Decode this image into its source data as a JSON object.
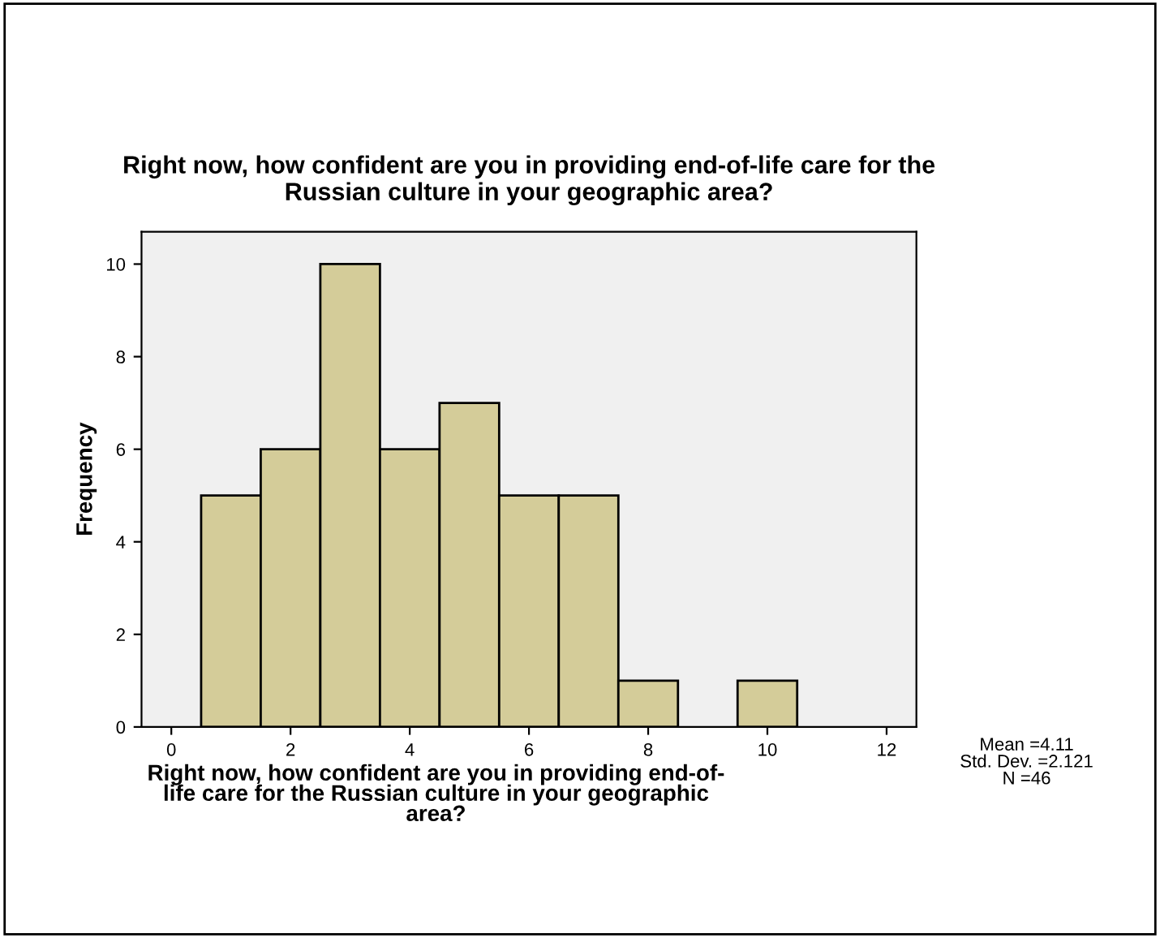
{
  "chart_data": {
    "type": "histogram",
    "title": "Right now, how confident are you in providing end-of-life care for the\nRussian culture in your geographic area?",
    "xlabel": "Right now, how confident are you in providing end-of-\nlife care for the Russian culture in your geographic\narea?",
    "ylabel": "Frequency",
    "bins": [
      0.5,
      1.5,
      2.5,
      3.5,
      4.5,
      5.5,
      6.5,
      7.5,
      8.5,
      9.5,
      10.5
    ],
    "values": [
      5,
      6,
      10,
      6,
      7,
      5,
      5,
      1,
      0,
      1
    ],
    "color": "#d4cc99",
    "xlim": [
      -0.5,
      12.5
    ],
    "xticks": [
      0,
      2,
      4,
      6,
      8,
      10,
      12
    ],
    "ylim": [
      0,
      10.7
    ],
    "yticks": [
      0,
      2,
      4,
      6,
      8,
      10
    ],
    "grid": false,
    "legend": false,
    "annotations": [
      "Mean =4.11",
      "Std. Dev. =2.121",
      "N =46"
    ]
  }
}
